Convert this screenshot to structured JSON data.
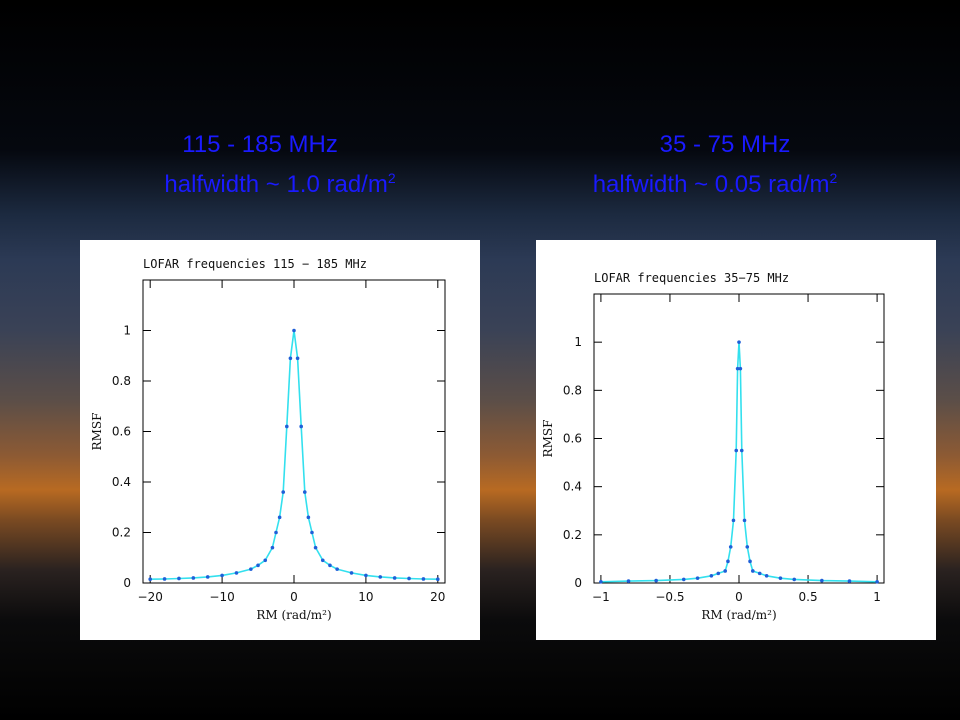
{
  "headings": {
    "left_freq": "115 - 185 MHz",
    "left_halfwidth": "halfwidth  ~ 1.0 rad/m",
    "left_sup": "2",
    "right_freq": "35 - 75 MHz",
    "right_halfwidth": "halfwidth   ~ 0.05 rad/m",
    "right_sup": "2"
  },
  "colors": {
    "heading": "#1a1aff",
    "curve": "#33e0ee",
    "points": "#1f5fd8"
  },
  "chart_data": [
    {
      "type": "line",
      "title": "LOFAR frequencies 115 − 185 MHz",
      "xlabel": "RM (rad/m²)",
      "ylabel": "RMSF",
      "xlim": [
        -21,
        21
      ],
      "ylim": [
        0,
        1.2
      ],
      "xticks": [
        -20,
        -10,
        0,
        10,
        20
      ],
      "xtick_labels": [
        "−20",
        "−10",
        "0",
        "10",
        "20"
      ],
      "yticks": [
        0,
        0.2,
        0.4,
        0.6,
        0.8,
        1
      ],
      "ytick_labels": [
        "0",
        "0.2",
        "0.4",
        "0.6",
        "0.8",
        "1"
      ],
      "grid": false,
      "x": [
        -20,
        -18,
        -16,
        -14,
        -12,
        -10,
        -8,
        -6,
        -5,
        -4,
        -3,
        -2.5,
        -2,
        -1.5,
        -1,
        -0.5,
        0,
        0.5,
        1,
        1.5,
        2,
        2.5,
        3,
        4,
        5,
        6,
        8,
        10,
        12,
        14,
        16,
        18,
        20
      ],
      "y": [
        0.015,
        0.016,
        0.018,
        0.02,
        0.024,
        0.03,
        0.04,
        0.055,
        0.07,
        0.09,
        0.14,
        0.2,
        0.26,
        0.36,
        0.62,
        0.89,
        1.0,
        0.89,
        0.62,
        0.36,
        0.26,
        0.2,
        0.14,
        0.09,
        0.07,
        0.055,
        0.04,
        0.03,
        0.024,
        0.02,
        0.018,
        0.016,
        0.015
      ]
    },
    {
      "type": "line",
      "title": "LOFAR frequencies  35−75 MHz",
      "xlabel": "RM (rad/m²)",
      "ylabel": "RMSF",
      "xlim": [
        -1.05,
        1.05
      ],
      "ylim": [
        0,
        1.2
      ],
      "xticks": [
        -1,
        -0.5,
        0,
        0.5,
        1
      ],
      "xtick_labels": [
        "−1",
        "−0.5",
        "0",
        "0.5",
        "1"
      ],
      "yticks": [
        0,
        0.2,
        0.4,
        0.6,
        0.8,
        1
      ],
      "ytick_labels": [
        "0",
        "0.2",
        "0.4",
        "0.6",
        "0.8",
        "1"
      ],
      "grid": false,
      "x": [
        -1,
        -0.8,
        -0.6,
        -0.4,
        -0.3,
        -0.2,
        -0.15,
        -0.1,
        -0.08,
        -0.06,
        -0.04,
        -0.02,
        -0.01,
        0,
        0.01,
        0.02,
        0.04,
        0.06,
        0.08,
        0.1,
        0.15,
        0.2,
        0.3,
        0.4,
        0.6,
        0.8,
        1
      ],
      "y": [
        0.005,
        0.008,
        0.01,
        0.015,
        0.02,
        0.03,
        0.04,
        0.05,
        0.09,
        0.15,
        0.26,
        0.55,
        0.89,
        1.0,
        0.89,
        0.55,
        0.26,
        0.15,
        0.09,
        0.05,
        0.04,
        0.03,
        0.02,
        0.015,
        0.01,
        0.008,
        0.005
      ]
    }
  ]
}
